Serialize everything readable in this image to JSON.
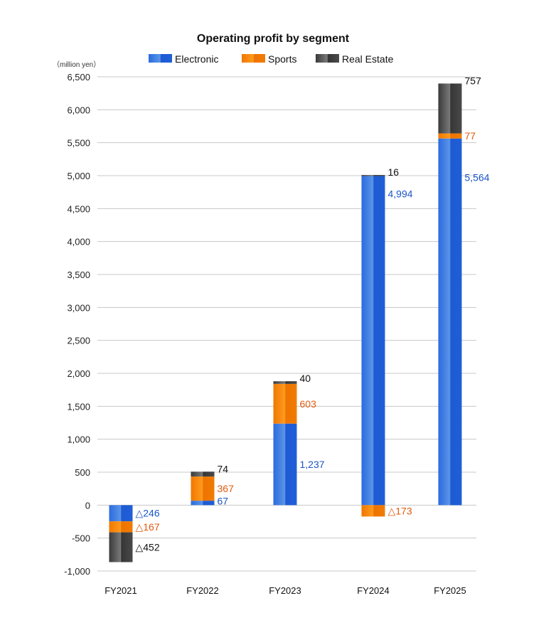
{
  "chart_data": {
    "type": "bar",
    "stacked": true,
    "title": "Operating profit by segment",
    "unit_label": "（million yen）",
    "ylim": [
      -1000,
      6500
    ],
    "yticks": [
      6500,
      6000,
      5500,
      5000,
      4500,
      4000,
      3500,
      3000,
      2500,
      2000,
      1500,
      1000,
      500,
      0,
      -500,
      -1000
    ],
    "ytick_labels": [
      "6,500",
      "6,000",
      "5,500",
      "5,000",
      "4,500",
      "4,000",
      "3,500",
      "3,000",
      "2,500",
      "2,000",
      "1,500",
      "1,000",
      "500",
      "0",
      "-500",
      "-1,000"
    ],
    "grid": true,
    "legend_position": "top-center",
    "categories": [
      "FY2021",
      "FY2022",
      "FY2023",
      "FY2024",
      "FY2025"
    ],
    "series": [
      {
        "name": "Electronic",
        "color": "#1f5fd6",
        "label_color": "#1a56c8",
        "values": [
          -246,
          67,
          1237,
          4994,
          5564
        ],
        "labels": [
          "△246",
          "67",
          "1,237",
          "4,994",
          "5,564"
        ]
      },
      {
        "name": "Sports",
        "color": "#f07c00",
        "label_color": "#e05a10",
        "values": [
          -167,
          367,
          603,
          -173,
          77
        ],
        "labels": [
          "△167",
          "367",
          "603",
          "△173",
          "77"
        ]
      },
      {
        "name": "Real Estate",
        "color": "#3c3c3c",
        "label_color": "#111111",
        "values": [
          -452,
          74,
          40,
          16,
          757
        ],
        "labels": [
          "△452",
          "74",
          "40",
          "16",
          "757"
        ]
      }
    ]
  }
}
